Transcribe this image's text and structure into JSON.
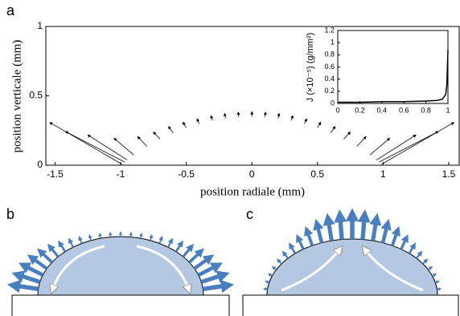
{
  "panel_labels": [
    "a",
    "b",
    "c"
  ],
  "chart_data": [
    {
      "type": "quiver",
      "x_label": "position radiale (mm)",
      "y_label": "position verticale (mm)",
      "xlim": [
        -1.57,
        1.58
      ],
      "ylim": [
        0,
        1
      ],
      "xticks": [
        -1.5,
        -1,
        -0.5,
        0,
        0.5,
        1,
        1.5
      ],
      "yticks": [
        0,
        0.5,
        1
      ],
      "color": "#000000",
      "x": [
        -0.99,
        -0.97,
        -0.95,
        -0.9,
        -0.8,
        -0.7,
        -0.6,
        -0.5,
        -0.4,
        -0.3,
        -0.2,
        -0.1,
        0,
        0.1,
        0.2,
        0.3,
        0.4,
        0.5,
        0.6,
        0.7,
        0.8,
        0.9,
        0.95,
        0.97,
        0.99
      ],
      "y": [
        0.008,
        0.023,
        0.038,
        0.074,
        0.136,
        0.189,
        0.234,
        0.27,
        0.299,
        0.322,
        0.338,
        0.347,
        0.35,
        0.347,
        0.338,
        0.322,
        0.299,
        0.27,
        0.234,
        0.189,
        0.136,
        0.074,
        0.038,
        0.023,
        0.008
      ],
      "u": [
        -0.55,
        -0.45,
        -0.3,
        -0.15,
        -0.07,
        -0.05,
        -0.035,
        -0.025,
        -0.018,
        -0.012,
        -0.008,
        -0.004,
        0,
        0.004,
        0.008,
        0.012,
        0.018,
        0.025,
        0.035,
        0.05,
        0.07,
        0.15,
        0.3,
        0.45,
        0.55
      ],
      "v": [
        0.3,
        0.22,
        0.18,
        0.12,
        0.07,
        0.05,
        0.045,
        0.04,
        0.035,
        0.035,
        0.035,
        0.035,
        0.035,
        0.035,
        0.035,
        0.035,
        0.035,
        0.04,
        0.045,
        0.05,
        0.07,
        0.12,
        0.18,
        0.22,
        0.3
      ]
    },
    {
      "type": "line",
      "y_label": "J (×10⁻⁵) (g/mm²)",
      "xlim": [
        0,
        1
      ],
      "ylim": [
        0,
        1.2
      ],
      "xticks": [
        0,
        0.2,
        0.4,
        0.6,
        0.8,
        1
      ],
      "yticks": [
        0,
        0.2,
        0.4,
        0.6,
        0.8,
        1,
        1.2
      ],
      "color": "#000000",
      "x": [
        0,
        0.1,
        0.2,
        0.3,
        0.4,
        0.5,
        0.6,
        0.7,
        0.8,
        0.9,
        0.95,
        0.98,
        0.99,
        1
      ],
      "values": [
        0.02,
        0.02,
        0.02,
        0.025,
        0.03,
        0.03,
        0.03,
        0.035,
        0.04,
        0.05,
        0.07,
        0.15,
        0.3,
        0.88
      ]
    }
  ]
}
